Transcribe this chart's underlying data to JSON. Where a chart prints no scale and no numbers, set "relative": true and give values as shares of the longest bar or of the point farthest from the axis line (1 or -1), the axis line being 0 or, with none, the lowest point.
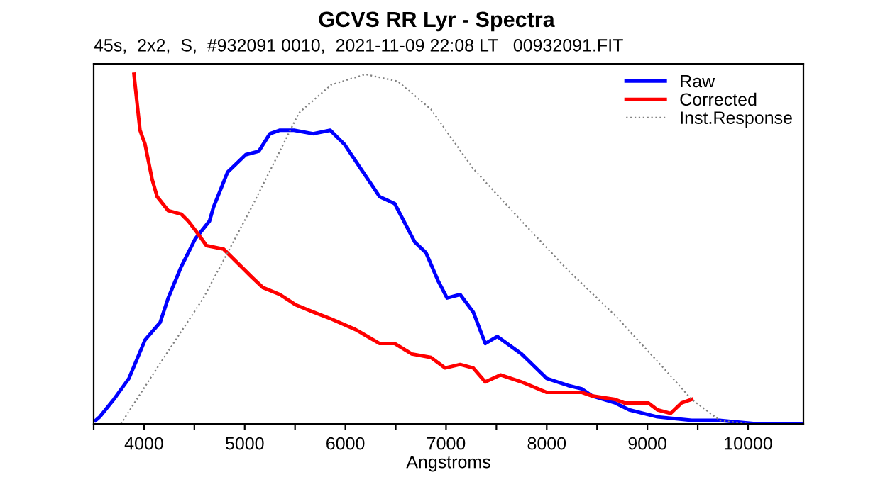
{
  "chart_data": {
    "type": "line",
    "title": "GCVS RR Lyr - Spectra",
    "subtitle": "45s,  2x2,  S,  #932091 0010,  2021-11-09 22:08 LT   00932091.FIT",
    "xlabel": "Angstroms",
    "relative": true,
    "xlim": [
      3500,
      10550
    ],
    "xticks": [
      {
        "value": 3500,
        "label": null
      },
      4000,
      {
        "value": 4500,
        "label": null
      },
      5000,
      {
        "value": 5500,
        "label": null
      },
      6000,
      {
        "value": 6500,
        "label": null
      },
      7000,
      {
        "value": 7500,
        "label": null
      },
      8000,
      {
        "value": 8500,
        "label": null
      },
      9000,
      {
        "value": 9500,
        "label": null
      },
      10000
    ],
    "legend": "top right",
    "grid": false,
    "series": [
      {
        "name": "Raw",
        "color": "#0000ff",
        "line_style": "solid",
        "x": [
          3520,
          3560,
          3700,
          3850,
          4010,
          4160,
          4240,
          4370,
          4510,
          4650,
          4690,
          4830,
          5010,
          5140,
          5250,
          5350,
          5490,
          5680,
          5850,
          5990,
          6130,
          6340,
          6490,
          6690,
          6800,
          6920,
          7010,
          7140,
          7270,
          7390,
          7510,
          7750,
          8000,
          8210,
          8350,
          8450,
          8680,
          8820,
          9100,
          9440,
          9720,
          10090,
          10540
        ],
        "values": [
          0.01,
          0.02,
          0.07,
          0.13,
          0.24,
          0.29,
          0.36,
          0.45,
          0.53,
          0.58,
          0.62,
          0.72,
          0.77,
          0.78,
          0.83,
          0.84,
          0.84,
          0.83,
          0.84,
          0.8,
          0.74,
          0.65,
          0.63,
          0.52,
          0.49,
          0.41,
          0.36,
          0.37,
          0.32,
          0.23,
          0.25,
          0.2,
          0.13,
          0.11,
          0.1,
          0.08,
          0.06,
          0.04,
          0.02,
          0.01,
          0.01,
          0.0,
          0.0
        ]
      },
      {
        "name": "Corrected",
        "color": "#ff0000",
        "line_style": "solid",
        "x": [
          3900,
          3960,
          4010,
          4080,
          4130,
          4240,
          4370,
          4440,
          4520,
          4620,
          4790,
          4930,
          5070,
          5180,
          5350,
          5510,
          5680,
          5860,
          6100,
          6340,
          6490,
          6660,
          6850,
          6990,
          7140,
          7270,
          7390,
          7540,
          7750,
          8000,
          8350,
          8450,
          8680,
          8770,
          9010,
          9100,
          9230,
          9340,
          9440
        ],
        "values": [
          1.0,
          0.84,
          0.8,
          0.7,
          0.65,
          0.61,
          0.6,
          0.58,
          0.55,
          0.51,
          0.5,
          0.46,
          0.42,
          0.39,
          0.37,
          0.34,
          0.32,
          0.3,
          0.27,
          0.23,
          0.23,
          0.2,
          0.19,
          0.16,
          0.17,
          0.16,
          0.12,
          0.14,
          0.12,
          0.09,
          0.09,
          0.08,
          0.07,
          0.06,
          0.06,
          0.04,
          0.03,
          0.06,
          0.07
        ]
      },
      {
        "name": "Inst.Response",
        "color": "#808080",
        "line_style": "dotted",
        "x": [
          3770,
          4130,
          4590,
          5070,
          5540,
          5860,
          6200,
          6520,
          6850,
          7270,
          7750,
          8210,
          8680,
          9160,
          9440,
          9720,
          10000,
          10540
        ],
        "values": [
          0.0,
          0.16,
          0.36,
          0.62,
          0.89,
          0.97,
          1.0,
          0.98,
          0.9,
          0.73,
          0.58,
          0.44,
          0.31,
          0.16,
          0.07,
          0.01,
          0.0,
          0.0
        ]
      }
    ]
  }
}
